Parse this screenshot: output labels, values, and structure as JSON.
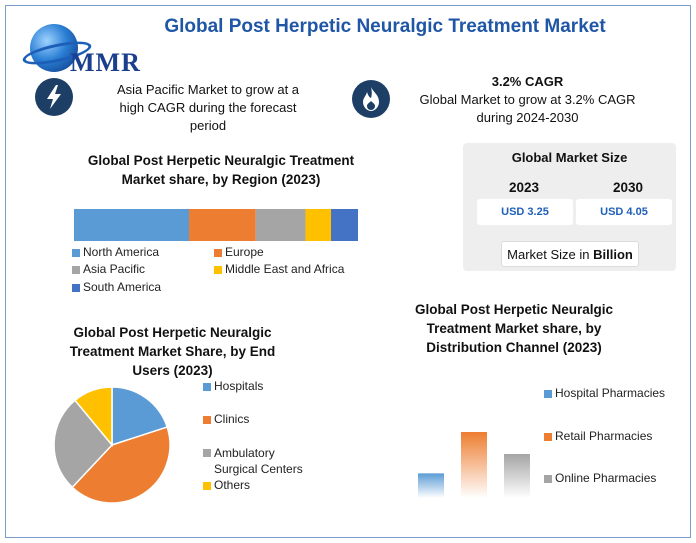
{
  "header": {
    "logo_text": "MMR",
    "title": "Global Post Herpetic Neuralgic Treatment Market"
  },
  "info": {
    "left_icon": "lightning-icon",
    "left_text": "Asia Pacific Market to grow at a high CAGR during the forecast period",
    "right_icon": "flame-icon",
    "right_heading": "3.2% CAGR",
    "right_text": "Global Market to grow at 3.2% CAGR during 2024-2030"
  },
  "market_size": {
    "title": "Global Market Size",
    "year1": "2023",
    "value1": "USD 3.25",
    "year2": "2030",
    "value2": "USD 4.05",
    "unit_prefix": "Market Size in ",
    "unit_bold": "Billion"
  },
  "colors": {
    "north_america": "#5b9bd5",
    "europe": "#ed7d31",
    "asia_pacific": "#a5a5a5",
    "middle_east_africa": "#ffc000",
    "south_america": "#4472c4"
  },
  "chart_data": [
    {
      "type": "bar",
      "stacked": true,
      "orientation": "horizontal",
      "title": "Global Post Herpetic Neuralgic Treatment Market share, by Region (2023)",
      "series": [
        {
          "name": "North America",
          "value": 40.5
        },
        {
          "name": "Europe",
          "value": 23.5
        },
        {
          "name": "Asia Pacific",
          "value": 17.5
        },
        {
          "name": "Middle East and Africa",
          "value": 9
        },
        {
          "name": "South America",
          "value": 9.5
        }
      ],
      "legend": "bottom"
    },
    {
      "type": "pie",
      "title": "Global Post Herpetic Neuralgic Treatment Market Share, by End Users (2023)",
      "labels": [
        "Hospitals",
        "Clinics",
        "Ambulatory Surgical Centers",
        "Others"
      ],
      "values": [
        20,
        42,
        27,
        11
      ],
      "legend": "right"
    },
    {
      "type": "bar",
      "title": "Global Post Herpetic Neuralgic Treatment Market share, by Distribution Channel (2023)",
      "categories": [
        "Hospital Pharmacies",
        "Retail Pharmacies",
        "Online Pharmacies"
      ],
      "values": [
        28,
        75,
        50
      ],
      "legend": "right"
    }
  ]
}
